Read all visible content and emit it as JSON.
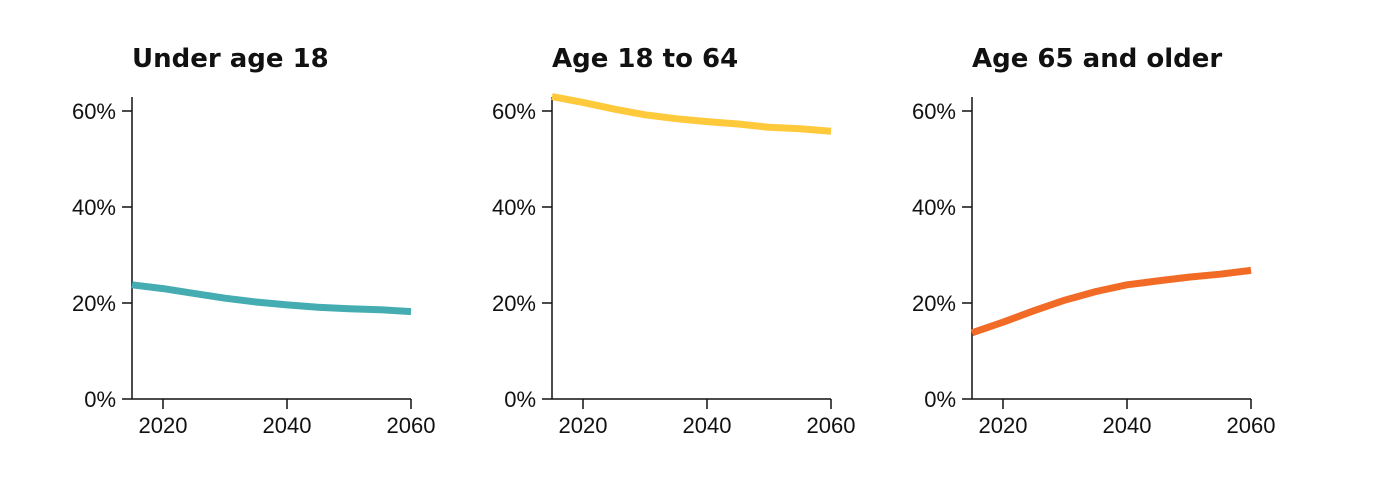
{
  "chart_data": [
    {
      "type": "line",
      "title": "Under age 18",
      "xlabel": "",
      "ylabel": "",
      "x_ticks": [
        "2020",
        "2040",
        "2060"
      ],
      "y_ticks": [
        "0%",
        "20%",
        "40%",
        "60%"
      ],
      "xlim": [
        2015,
        2060
      ],
      "ylim": [
        0,
        63
      ],
      "grid": false,
      "color": "#45ADB2",
      "x": [
        2015,
        2020,
        2025,
        2030,
        2035,
        2040,
        2045,
        2050,
        2055,
        2060
      ],
      "values": [
        23.8,
        23.0,
        22.0,
        21.0,
        20.2,
        19.6,
        19.1,
        18.8,
        18.6,
        18.2
      ]
    },
    {
      "type": "line",
      "title": "Age 18 to 64",
      "xlabel": "",
      "ylabel": "",
      "x_ticks": [
        "2020",
        "2040",
        "2060"
      ],
      "y_ticks": [
        "0%",
        "20%",
        "40%",
        "60%"
      ],
      "xlim": [
        2015,
        2060
      ],
      "ylim": [
        0,
        63
      ],
      "grid": false,
      "color": "#FFC93C",
      "x": [
        2015,
        2020,
        2025,
        2030,
        2035,
        2040,
        2045,
        2050,
        2055,
        2060
      ],
      "values": [
        63.0,
        61.8,
        60.4,
        59.2,
        58.4,
        57.8,
        57.3,
        56.6,
        56.3,
        55.8
      ]
    },
    {
      "type": "line",
      "title": "Age 65 and older",
      "xlabel": "",
      "ylabel": "",
      "x_ticks": [
        "2020",
        "2040",
        "2060"
      ],
      "y_ticks": [
        "0%",
        "20%",
        "40%",
        "60%"
      ],
      "xlim": [
        2015,
        2060
      ],
      "ylim": [
        0,
        63
      ],
      "grid": false,
      "color": "#F26B26",
      "x": [
        2015,
        2020,
        2025,
        2030,
        2035,
        2040,
        2045,
        2050,
        2055,
        2060
      ],
      "values": [
        13.8,
        16.0,
        18.4,
        20.6,
        22.4,
        23.8,
        24.6,
        25.4,
        26.0,
        26.8
      ]
    }
  ]
}
